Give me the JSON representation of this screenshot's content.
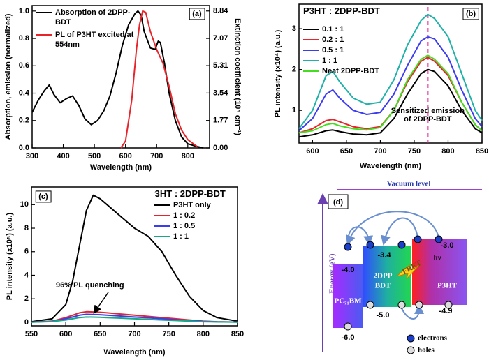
{
  "chart_data": [
    {
      "type": "line",
      "xlim": [
        300,
        870
      ],
      "xticks": [
        300,
        400,
        500,
        600,
        700,
        800
      ],
      "ylim": [
        0,
        1.04
      ],
      "yticks": [
        {
          "value": 0,
          "label": "0.0"
        },
        0.2,
        0.4,
        0.6,
        0.8,
        {
          "value": 1,
          "label": "1.0"
        }
      ],
      "y2lim": [
        0,
        9.19
      ],
      "y2ticks": [
        {
          "value": 0,
          "label": "0.00"
        },
        1.77,
        3.54,
        5.31,
        7.07,
        8.84
      ],
      "xlabel": "Wavelength (nm)",
      "ylabel": "Absorption, emission (normalized)",
      "y2label": "Extinction coefficient (10⁴ cm⁻¹)",
      "panel_label": "(a)",
      "legend": "upper left",
      "series": [
        {
          "name": "Absorption of 2DPP-BDT",
          "color": "#000000",
          "x": [
            300,
            320,
            340,
            355,
            370,
            390,
            410,
            430,
            450,
            470,
            490,
            510,
            530,
            550,
            570,
            590,
            610,
            630,
            640,
            650,
            660,
            680,
            695,
            705,
            712,
            725,
            740,
            760,
            780,
            800,
            830,
            850
          ],
          "values": [
            0.26,
            0.35,
            0.42,
            0.46,
            0.39,
            0.33,
            0.36,
            0.38,
            0.31,
            0.21,
            0.17,
            0.2,
            0.27,
            0.38,
            0.55,
            0.75,
            0.9,
            0.98,
            1.0,
            0.97,
            0.85,
            0.73,
            0.72,
            0.78,
            0.77,
            0.62,
            0.4,
            0.2,
            0.08,
            0.03,
            0.01,
            0
          ]
        },
        {
          "name": "PL of P3HT excited at 554nm",
          "color": "#e8242b",
          "x": [
            585,
            600,
            620,
            635,
            645,
            655,
            665,
            680,
            700,
            720,
            740,
            760,
            780,
            800,
            830
          ],
          "values": [
            0,
            0.05,
            0.35,
            0.72,
            0.9,
            1.0,
            0.99,
            0.85,
            0.72,
            0.62,
            0.45,
            0.25,
            0.13,
            0.06,
            0.01
          ]
        }
      ]
    },
    {
      "type": "line",
      "xlim": [
        580,
        850
      ],
      "xticks": [
        600,
        650,
        700,
        750,
        800,
        850
      ],
      "ylim": [
        0.2,
        3.6
      ],
      "yticks": [
        1,
        2,
        3
      ],
      "xlabel": "Wavelength (nm)",
      "ylabel": "PL intensity (x10⁴) (a.u.)",
      "panel_label": "(b)",
      "legend": "upper left",
      "legend_title": "P3HT : 2DPP-BDT",
      "marker_x": 770,
      "marker_color": "#e0218a",
      "annotation": [
        "Sensitized emission",
        "of 2DPP-BDT"
      ],
      "x": [
        580,
        600,
        620,
        630,
        640,
        660,
        680,
        700,
        720,
        740,
        760,
        770,
        780,
        800,
        820,
        840,
        850
      ],
      "series": [
        {
          "name": "0.1 : 1",
          "color": "#000000",
          "values": [
            0.35,
            0.4,
            0.5,
            0.52,
            0.48,
            0.42,
            0.4,
            0.45,
            0.8,
            1.4,
            1.9,
            2.0,
            1.95,
            1.6,
            1.0,
            0.55,
            0.45
          ]
        },
        {
          "name": "0.2 : 1",
          "color": "#e8242b",
          "values": [
            0.45,
            0.55,
            0.75,
            0.78,
            0.72,
            0.6,
            0.55,
            0.6,
            1.0,
            1.7,
            2.2,
            2.3,
            2.2,
            1.85,
            1.2,
            0.65,
            0.5
          ]
        },
        {
          "name": "0.5 : 1",
          "color": "#3b3bf0",
          "values": [
            0.5,
            0.8,
            1.4,
            1.5,
            1.3,
            1.0,
            0.9,
            0.95,
            1.4,
            2.1,
            2.7,
            2.8,
            2.75,
            2.3,
            1.5,
            0.8,
            0.6
          ]
        },
        {
          "name": "1 : 1",
          "color": "#20b2aa",
          "values": [
            0.55,
            1.0,
            1.85,
            1.95,
            1.7,
            1.3,
            1.15,
            1.2,
            1.75,
            2.6,
            3.2,
            3.35,
            3.25,
            2.8,
            1.9,
            1.0,
            0.75
          ]
        },
        {
          "name": "Neat 2DPP-BDT",
          "color": "#44dd22",
          "values": [
            0.45,
            0.5,
            0.65,
            0.68,
            0.62,
            0.55,
            0.52,
            0.58,
            1.0,
            1.75,
            2.25,
            2.35,
            2.25,
            1.9,
            1.2,
            0.65,
            0.5
          ]
        }
      ]
    },
    {
      "type": "line",
      "xlim": [
        550,
        850
      ],
      "xticks": [
        550,
        600,
        650,
        700,
        750,
        800,
        850
      ],
      "ylim": [
        -0.3,
        11.5
      ],
      "yticks": [
        0,
        2,
        4,
        6,
        8,
        10
      ],
      "xlabel": "Wavelength (nm)",
      "ylabel": "PL intensity (x10⁵) (a.u.)",
      "panel_label": "(c)",
      "legend": "upper right",
      "legend_title": "P3HT : 2DPP-BDT",
      "annotation": [
        "96% PL quenching"
      ],
      "x": [
        550,
        580,
        600,
        610,
        620,
        630,
        640,
        650,
        660,
        680,
        700,
        720,
        740,
        760,
        780,
        800,
        820,
        850
      ],
      "series": [
        {
          "name": "P3HT only",
          "color": "#000000",
          "values": [
            0.05,
            0.3,
            1.5,
            3.5,
            6.5,
            9.5,
            10.8,
            10.5,
            10,
            9,
            8,
            7.3,
            6,
            4,
            2.2,
            1,
            0.4,
            0.1
          ]
        },
        {
          "name": "1 : 0.2",
          "color": "#e8242b",
          "values": [
            0.02,
            0.1,
            0.4,
            0.6,
            0.8,
            0.9,
            0.88,
            0.85,
            0.8,
            0.7,
            0.6,
            0.5,
            0.4,
            0.3,
            0.2,
            0.1,
            0.05,
            0.02
          ]
        },
        {
          "name": "1 : 0.5",
          "color": "#3b3bf0",
          "values": [
            0.02,
            0.08,
            0.3,
            0.45,
            0.6,
            0.68,
            0.66,
            0.64,
            0.6,
            0.53,
            0.45,
            0.38,
            0.3,
            0.22,
            0.15,
            0.08,
            0.04,
            0.02
          ]
        },
        {
          "name": "1 : 1",
          "color": "#18a888",
          "values": [
            0.01,
            0.06,
            0.2,
            0.3,
            0.4,
            0.45,
            0.44,
            0.43,
            0.4,
            0.35,
            0.3,
            0.25,
            0.2,
            0.15,
            0.1,
            0.05,
            0.03,
            0.01
          ]
        }
      ]
    }
  ],
  "diagram": {
    "title": "Vacuum level",
    "axis_label": "Energy (eV)",
    "panel_label": "(d)",
    "boxes": [
      {
        "label_lines": [
          "PC₇₁BM"
        ],
        "lumo": "-4.0",
        "homo": "-6.0"
      },
      {
        "label_lines": [
          "2DPP",
          "BDT"
        ],
        "lumo": "-3.4",
        "homo": "-5.0"
      },
      {
        "label_lines": [
          "P3HT"
        ],
        "lumo": "-3.0",
        "homo": "-4.9"
      }
    ],
    "fret": "FRET",
    "hv": "hν",
    "legend": [
      "electrons",
      "holes"
    ]
  }
}
